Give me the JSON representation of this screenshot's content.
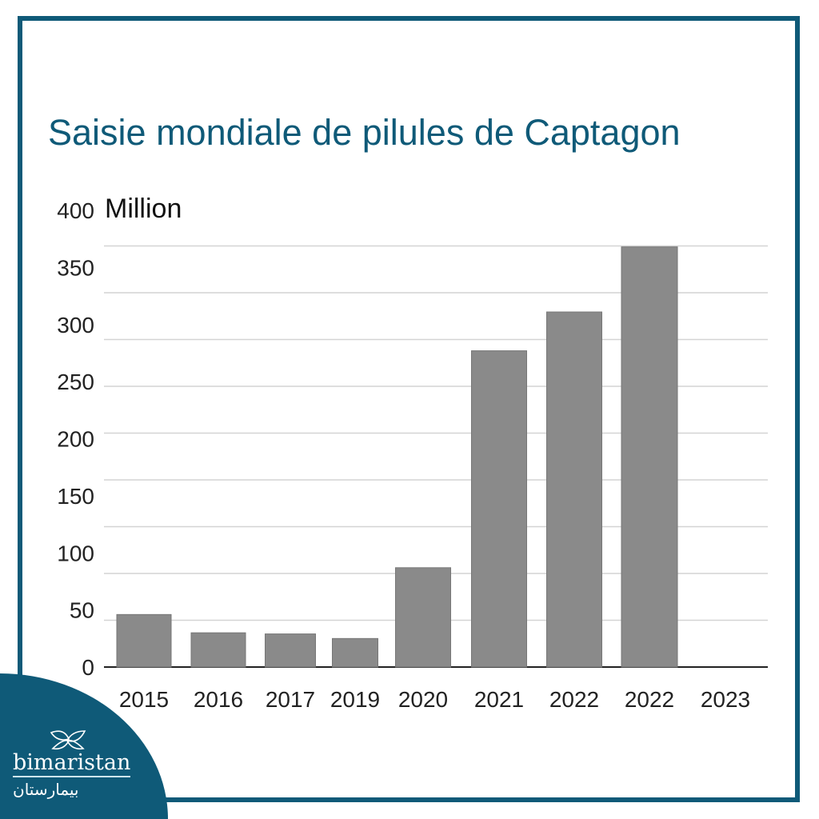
{
  "chart_data": {
    "type": "bar",
    "title": "Saisie mondiale de pilules de Captagon",
    "ylabel": "Million",
    "categories": [
      "2015",
      "2016",
      "2017",
      "2019",
      "2020",
      "2021",
      "2022",
      "2022",
      "2023"
    ],
    "values": [
      46,
      30,
      29,
      25,
      87,
      277,
      311,
      368,
      null
    ],
    "yticks": [
      "0",
      "50",
      "100",
      "150",
      "200",
      "250",
      "300",
      "350",
      "400"
    ],
    "ylim": [
      0,
      400
    ],
    "grid": true,
    "bar_color": "#8a8a8a"
  },
  "brand": {
    "name": "bimaristan",
    "name_arabic": "بيمارستان",
    "color": "#0f5a78",
    "icon": "butterfly-leaf-icon"
  }
}
